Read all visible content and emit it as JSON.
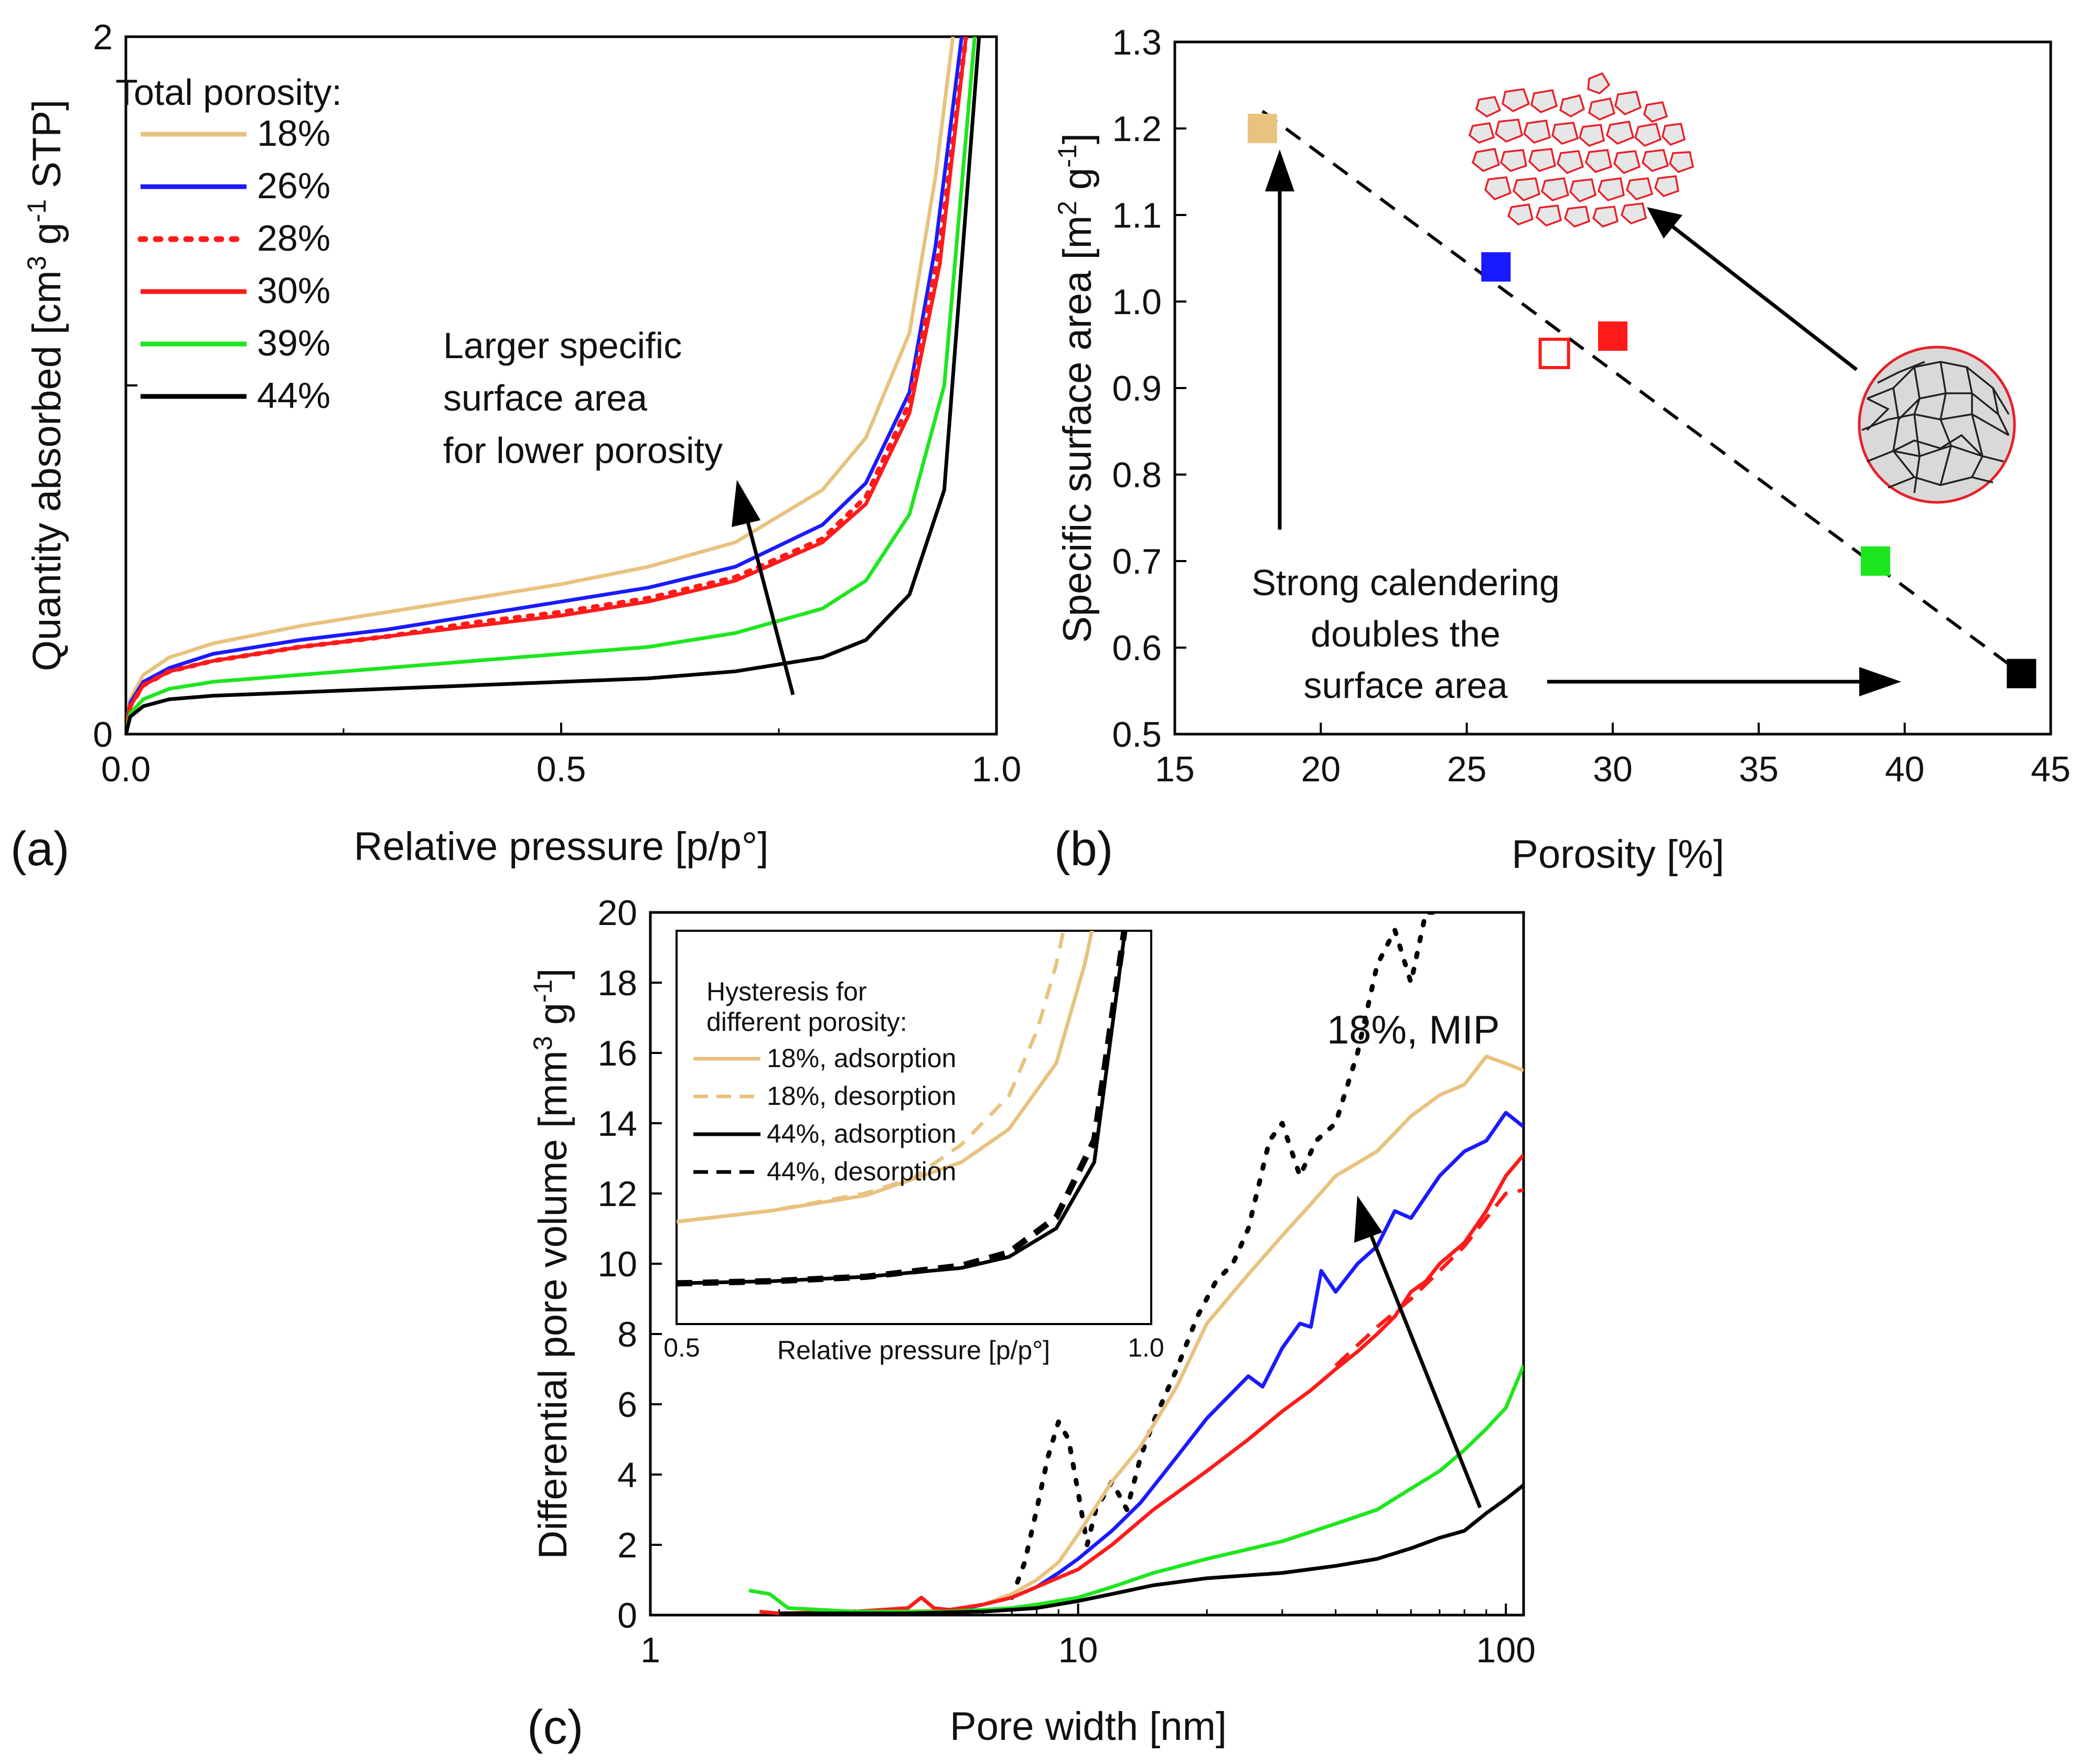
{
  "figure": {
    "a": {
      "panel_label": "(a)",
      "xlabel": "Relative pressure [p/p°]",
      "ylabel_main": "Quantity absorbed [cm",
      "ylabel_sup1": "3",
      "ylabel_mid": " g",
      "ylabel_sup2": "-1",
      "ylabel_end": " STP]",
      "annotation": [
        "Larger specific",
        "surface area",
        "for lower porosity"
      ]
    },
    "b": {
      "panel_label": "(b)",
      "xlabel": "Porosity [%]",
      "ylabel_main": "Specific surface area [m",
      "ylabel_sup1": "2",
      "ylabel_mid": " g",
      "ylabel_sup2": "-1",
      "ylabel_end": "]",
      "annotation": [
        "Strong calendering",
        "doubles the",
        "surface area"
      ]
    },
    "c": {
      "panel_label": "(c)",
      "xlabel": "Pore width [nm]",
      "ylabel_main": "Differential pore volume [mm",
      "ylabel_sup1": "3",
      "ylabel_mid": " g",
      "ylabel_sup2": "-1",
      "ylabel_end": "]",
      "mip_label": "18%, MIP",
      "inset": {
        "title": [
          "Hysteresis for",
          "different porosity:"
        ],
        "xlabel": "Relative pressure [p/p°]"
      }
    }
  },
  "chart_data": [
    {
      "id": "a",
      "type": "line",
      "xlabel": "Relative pressure [p/p°]",
      "ylabel": "Quantity absorbed [cm3 g-1 STP]",
      "xlim": [
        0,
        1
      ],
      "ylim": [
        0,
        2
      ],
      "xticks": [
        "0.0",
        "0.5",
        "1.0"
      ],
      "yticks": [
        "0",
        "2"
      ],
      "legend_title": "Total porosity:",
      "legend_position": "top-left",
      "series": [
        {
          "name": "18%",
          "color": "#e8c27f",
          "style": "solid",
          "x": [
            0,
            0.005,
            0.02,
            0.05,
            0.1,
            0.2,
            0.3,
            0.4,
            0.5,
            0.6,
            0.7,
            0.8,
            0.85,
            0.9,
            0.93,
            0.95
          ],
          "y": [
            0,
            0.1,
            0.17,
            0.22,
            0.26,
            0.31,
            0.35,
            0.39,
            0.43,
            0.48,
            0.55,
            0.7,
            0.85,
            1.15,
            1.6,
            2.0
          ]
        },
        {
          "name": "26%",
          "color": "#1a1aff",
          "style": "solid",
          "x": [
            0,
            0.005,
            0.02,
            0.05,
            0.1,
            0.2,
            0.3,
            0.4,
            0.5,
            0.6,
            0.7,
            0.8,
            0.85,
            0.9,
            0.93,
            0.96
          ],
          "y": [
            0,
            0.09,
            0.15,
            0.19,
            0.23,
            0.27,
            0.3,
            0.34,
            0.38,
            0.42,
            0.48,
            0.6,
            0.72,
            0.98,
            1.4,
            2.0
          ]
        },
        {
          "name": "28%",
          "color": "#ff1a1a",
          "style": "dotted",
          "x": [
            0,
            0.005,
            0.02,
            0.05,
            0.1,
            0.2,
            0.3,
            0.4,
            0.5,
            0.6,
            0.7,
            0.8,
            0.85,
            0.9,
            0.935,
            0.965
          ],
          "y": [
            0,
            0.08,
            0.14,
            0.18,
            0.21,
            0.25,
            0.28,
            0.32,
            0.35,
            0.39,
            0.45,
            0.56,
            0.68,
            0.95,
            1.4,
            2.0
          ]
        },
        {
          "name": "30%",
          "color": "#ff1a1a",
          "style": "solid",
          "x": [
            0,
            0.005,
            0.02,
            0.05,
            0.1,
            0.2,
            0.3,
            0.4,
            0.5,
            0.6,
            0.7,
            0.8,
            0.85,
            0.9,
            0.935,
            0.965
          ],
          "y": [
            0,
            0.08,
            0.14,
            0.18,
            0.21,
            0.25,
            0.28,
            0.31,
            0.34,
            0.38,
            0.44,
            0.55,
            0.66,
            0.92,
            1.35,
            2.0
          ]
        },
        {
          "name": "39%",
          "color": "#1ee61e",
          "style": "solid",
          "x": [
            0,
            0.005,
            0.02,
            0.05,
            0.1,
            0.2,
            0.3,
            0.4,
            0.5,
            0.6,
            0.7,
            0.8,
            0.85,
            0.9,
            0.94,
            0.975
          ],
          "y": [
            0,
            0.06,
            0.1,
            0.13,
            0.15,
            0.17,
            0.19,
            0.21,
            0.23,
            0.25,
            0.29,
            0.36,
            0.44,
            0.63,
            1.0,
            2.0
          ]
        },
        {
          "name": "44%",
          "color": "#000000",
          "style": "solid",
          "x": [
            0,
            0.005,
            0.02,
            0.05,
            0.1,
            0.2,
            0.3,
            0.4,
            0.5,
            0.6,
            0.7,
            0.8,
            0.85,
            0.9,
            0.94,
            0.98
          ],
          "y": [
            0,
            0.05,
            0.08,
            0.1,
            0.11,
            0.12,
            0.13,
            0.14,
            0.15,
            0.16,
            0.18,
            0.22,
            0.27,
            0.4,
            0.7,
            2.0
          ]
        }
      ]
    },
    {
      "id": "b",
      "type": "scatter",
      "xlabel": "Porosity [%]",
      "ylabel": "Specific surface area [m2 g-1]",
      "xlim": [
        15,
        45
      ],
      "ylim": [
        0.5,
        1.3
      ],
      "xticks": [
        15,
        20,
        25,
        30,
        35,
        40,
        45
      ],
      "yticks": [
        "0.5",
        "0.6",
        "0.7",
        "0.8",
        "0.9",
        "1.0",
        "1.1",
        "1.2",
        "1.3"
      ],
      "trendline": {
        "x": [
          18,
          44
        ],
        "y": [
          1.22,
          0.57
        ],
        "style": "dashed"
      },
      "points": [
        {
          "x": 18,
          "y": 1.2,
          "color": "#e8c27f",
          "filled": true
        },
        {
          "x": 26,
          "y": 1.04,
          "color": "#1a1aff",
          "filled": true
        },
        {
          "x": 28,
          "y": 0.94,
          "color": "#ff1a1a",
          "filled": false
        },
        {
          "x": 30,
          "y": 0.96,
          "color": "#ff1a1a",
          "filled": true
        },
        {
          "x": 39,
          "y": 0.7,
          "color": "#1ee61e",
          "filled": true
        },
        {
          "x": 44,
          "y": 0.57,
          "color": "#000000",
          "filled": true
        }
      ]
    },
    {
      "id": "c",
      "type": "line",
      "xscale": "log",
      "xlabel": "Pore width [nm]",
      "ylabel": "Differential pore volume [mm3 g-1]",
      "xlim": [
        1,
        110
      ],
      "ylim": [
        0,
        20
      ],
      "xticks": [
        1,
        10,
        100
      ],
      "yticks": [
        0,
        2,
        4,
        6,
        8,
        10,
        12,
        14,
        16,
        18,
        20
      ],
      "series": [
        {
          "name": "18%, MIP",
          "color": "#000000",
          "style": "dotted",
          "x": [
            7,
            7.5,
            8,
            8.5,
            9,
            9.5,
            10,
            10.5,
            11,
            12,
            13,
            14,
            15,
            17,
            19,
            21,
            23,
            25,
            28,
            30,
            33,
            36,
            40,
            45,
            50,
            55,
            60,
            65,
            70
          ],
          "y": [
            0.5,
            1.5,
            3,
            4.5,
            5.5,
            5,
            3.5,
            2,
            3,
            3.8,
            3,
            4.5,
            5.5,
            7,
            8.5,
            9.5,
            10,
            11,
            13.5,
            14,
            12.5,
            13.5,
            14,
            16,
            18.5,
            19.5,
            18,
            20,
            20
          ]
        },
        {
          "name": "18%",
          "color": "#e8c27f",
          "style": "solid",
          "x": [
            4,
            5,
            6,
            7,
            8,
            9,
            10,
            12,
            14,
            17,
            20,
            25,
            30,
            35,
            40,
            50,
            60,
            70,
            80,
            90,
            100,
            110
          ],
          "y": [
            0.1,
            0.15,
            0.3,
            0.6,
            1.0,
            1.5,
            2.3,
            3.8,
            4.8,
            6.5,
            8.3,
            9.7,
            10.8,
            11.7,
            12.5,
            13.2,
            14.2,
            14.8,
            15.1,
            15.9,
            15.7,
            15.5
          ]
        },
        {
          "name": "26%",
          "color": "#1a1aff",
          "style": "solid",
          "x": [
            4,
            5,
            6,
            7,
            8,
            9,
            10,
            12,
            14,
            17,
            20,
            25,
            27,
            30,
            33,
            35,
            37,
            40,
            45,
            50,
            55,
            60,
            70,
            80,
            90,
            100,
            110
          ],
          "y": [
            0.05,
            0.1,
            0.3,
            0.5,
            0.8,
            1.2,
            1.6,
            2.4,
            3.2,
            4.5,
            5.6,
            6.8,
            6.5,
            7.6,
            8.3,
            8.2,
            9.8,
            9.2,
            10.0,
            10.5,
            11.5,
            11.3,
            12.5,
            13.2,
            13.5,
            14.3,
            13.9
          ]
        },
        {
          "name": "30%",
          "color": "#ff1a1a",
          "style": "solid",
          "x": [
            1.8,
            2,
            3,
            4,
            4.3,
            4.6,
            5,
            6,
            7,
            8,
            10,
            12,
            15,
            20,
            25,
            30,
            35,
            40,
            45,
            50,
            55,
            60,
            65,
            70,
            80,
            90,
            100,
            110
          ],
          "y": [
            0.1,
            0.05,
            0.1,
            0.2,
            0.5,
            0.2,
            0.15,
            0.3,
            0.5,
            0.8,
            1.3,
            2.0,
            3.0,
            4.1,
            5.0,
            5.8,
            6.4,
            7.0,
            7.5,
            8.0,
            8.5,
            9.2,
            9.5,
            10.0,
            10.6,
            11.5,
            12.5,
            13.1
          ]
        },
        {
          "name": "28%",
          "color": "#ff1a1a",
          "style": "dashed",
          "x": [
            40,
            50,
            60,
            70,
            80,
            90,
            100,
            110
          ],
          "y": [
            7.1,
            8.2,
            9.0,
            9.8,
            10.5,
            11.3,
            12.0,
            12.1
          ]
        },
        {
          "name": "39%",
          "color": "#1ee61e",
          "style": "solid",
          "x": [
            1.7,
            1.9,
            2.1,
            3,
            4,
            5,
            6,
            7,
            8,
            10,
            12,
            15,
            20,
            30,
            40,
            50,
            60,
            70,
            80,
            90,
            100,
            110
          ],
          "y": [
            0.7,
            0.6,
            0.2,
            0.1,
            0.1,
            0.1,
            0.15,
            0.2,
            0.3,
            0.5,
            0.8,
            1.2,
            1.6,
            2.1,
            2.6,
            3.0,
            3.6,
            4.1,
            4.7,
            5.3,
            5.9,
            7.1
          ]
        },
        {
          "name": "44%",
          "color": "#000000",
          "style": "solid",
          "x": [
            2,
            3,
            4,
            5,
            6,
            7,
            8,
            10,
            12,
            15,
            20,
            30,
            40,
            50,
            60,
            70,
            80,
            90,
            100,
            110
          ],
          "y": [
            0.05,
            0.05,
            0.05,
            0.08,
            0.1,
            0.15,
            0.2,
            0.4,
            0.6,
            0.85,
            1.05,
            1.2,
            1.4,
            1.6,
            1.9,
            2.2,
            2.4,
            2.9,
            3.3,
            3.7
          ]
        }
      ]
    },
    {
      "id": "c_inset",
      "type": "line",
      "xlabel": "Relative pressure [p/p°]",
      "xlim": [
        0.5,
        1.0
      ],
      "xticks": [
        "0.5",
        "1.0"
      ],
      "legend_title": "Hysteresis for different porosity:",
      "series": [
        {
          "name": "18%, adsorption",
          "color": "#e8c27f",
          "style": "solid",
          "x": [
            0.5,
            0.6,
            0.7,
            0.8,
            0.85,
            0.9,
            0.93,
            0.95
          ],
          "y": [
            0.43,
            0.48,
            0.55,
            0.7,
            0.85,
            1.15,
            1.6,
            2.0
          ]
        },
        {
          "name": "18%, desorption",
          "color": "#e8c27f",
          "style": "dashed",
          "x": [
            0.5,
            0.6,
            0.7,
            0.75,
            0.8,
            0.85,
            0.88,
            0.9,
            0.92
          ],
          "y": [
            0.43,
            0.48,
            0.56,
            0.63,
            0.78,
            1.0,
            1.3,
            1.6,
            2.0
          ]
        },
        {
          "name": "44%, adsorption",
          "color": "#000000",
          "style": "solid",
          "x": [
            0.5,
            0.6,
            0.7,
            0.8,
            0.85,
            0.9,
            0.94,
            0.98
          ],
          "y": [
            0.15,
            0.16,
            0.18,
            0.22,
            0.27,
            0.4,
            0.7,
            2.0
          ]
        },
        {
          "name": "44%, desorption",
          "color": "#000000",
          "style": "dashed",
          "x": [
            0.5,
            0.6,
            0.7,
            0.8,
            0.85,
            0.9,
            0.94,
            0.98
          ],
          "y": [
            0.15,
            0.16,
            0.18,
            0.23,
            0.29,
            0.45,
            0.8,
            2.0
          ]
        }
      ]
    }
  ]
}
